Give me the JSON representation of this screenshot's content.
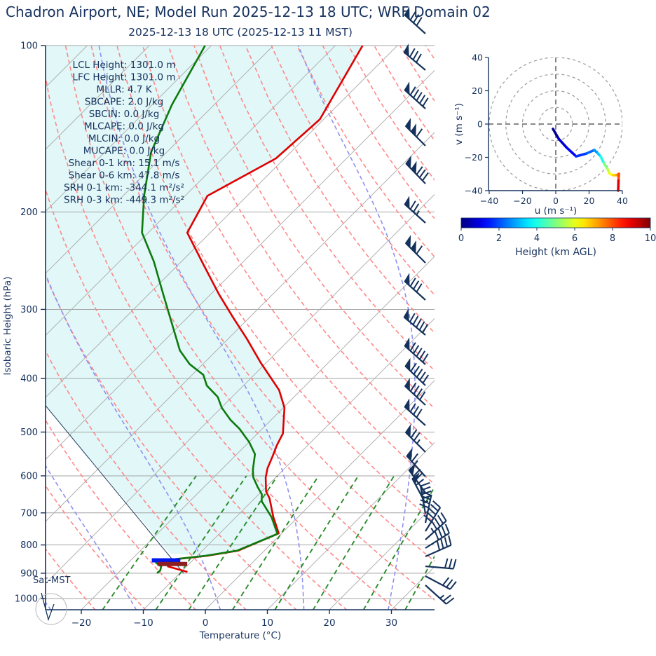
{
  "title": "Chadron Airport, NE; Model Run 2025-12-13 18 UTC; WRF Domain 02",
  "subtitle": "2025-12-13 18 UTC  (2025-12-13 11 MST)",
  "colors": {
    "text_navy": "#16325e",
    "temperature_line": "#e00000",
    "dewpoint_line": "#0d7a0d",
    "parcel_line": "#1a3a5c",
    "isotherm_gray": "#b3b3b3",
    "isobar_gray": "#a3a3a3",
    "dry_adiabat": "#ff8888",
    "moist_adiabat": "#9090ee",
    "mixing_ratio": "#2a8c2a",
    "shade_cyan": "#e1f7f8",
    "lcl_bar_blue": "#0018ee",
    "lfc_bar_darkred": "#8b2020",
    "barb_navy": "#14325c",
    "hodo_grid": "#999999"
  },
  "skewt": {
    "ylabel": "Isobaric Height (hPa)",
    "xlabel": "Temperature (°C)",
    "pressure_ticks": [
      100,
      200,
      300,
      400,
      500,
      600,
      700,
      800,
      900,
      1000
    ],
    "temp_ticks": [
      -20,
      -10,
      0,
      10,
      20,
      30
    ],
    "sat_label": "Sat-MST",
    "stats_lines": [
      "LCL Height: 1301.0 m",
      "LFC Height: 1301.0 m",
      "MLLR: 4.7 K",
      "SBCAPE: 2.0 J/kg",
      "SBCIN: 0.0 J/kg",
      "MLCAPE: 0.0 J/kg",
      "MLCIN: 0.0 J/kg",
      "MUCAPE: 0.0 J/kg",
      "Shear 0-1 km: 15.1 m/s",
      "Shear 0-6 km: 47.8 m/s",
      "SRH 0-1 km: -344.1 m²/s²",
      "SRH 0-3 km: -449.3 m²/s²"
    ]
  },
  "hodograph": {
    "xlabel": "u (m s⁻¹)",
    "ylabel": "v (m s⁻¹)",
    "axis_ticks": [
      -40,
      -20,
      0,
      20,
      40
    ],
    "ring_radii": [
      10,
      20,
      30,
      40
    ],
    "colorbar_label": "Height (km AGL)",
    "colorbar_ticks": [
      0,
      2,
      4,
      6,
      8,
      10
    ]
  },
  "chart_data": {
    "type": "line",
    "title": "Skew-T log-P sounding with hodograph inset",
    "xlabel": "Temperature (°C)",
    "ylabel": "Isobaric Height (hPa)",
    "x_range_c": [
      -26,
      37
    ],
    "p_range_hpa": [
      100,
      1050
    ],
    "skew_deg": 45,
    "grid": "on",
    "series": [
      {
        "name": "temperature",
        "units": [
          "hPa",
          "degC"
        ],
        "points": [
          [
            100,
            -65.6
          ],
          [
            136,
            -60.6
          ],
          [
            160,
            -61.4
          ],
          [
            187,
            -66.4
          ],
          [
            218,
            -63.7
          ],
          [
            250,
            -55.7
          ],
          [
            282,
            -48.6
          ],
          [
            310,
            -42.7
          ],
          [
            339,
            -37.0
          ],
          [
            374,
            -31.0
          ],
          [
            420,
            -23.5
          ],
          [
            452,
            -19.8
          ],
          [
            503,
            -15.9
          ],
          [
            528,
            -15.0
          ],
          [
            553,
            -13.9
          ],
          [
            581,
            -12.8
          ],
          [
            604,
            -11.6
          ],
          [
            640,
            -9.3
          ],
          [
            659,
            -7.6
          ],
          [
            712,
            -4.0
          ],
          [
            762,
            -0.5
          ],
          [
            819,
            -4.2
          ],
          [
            837,
            -8.4
          ],
          [
            849,
            -12.9
          ],
          [
            858,
            -14.1
          ],
          [
            875,
            -13.0
          ],
          [
            886,
            -10.8
          ],
          [
            895,
            -9.0
          ]
        ]
      },
      {
        "name": "dewpoint",
        "units": [
          "hPa",
          "degC"
        ],
        "points": [
          [
            100,
            -91.0
          ],
          [
            128,
            -86.8
          ],
          [
            156,
            -82.5
          ],
          [
            187,
            -76.6
          ],
          [
            218,
            -71.0
          ],
          [
            246,
            -64.4
          ],
          [
            282,
            -57.6
          ],
          [
            356,
            -45.9
          ],
          [
            377,
            -42.1
          ],
          [
            394,
            -38.2
          ],
          [
            412,
            -35.9
          ],
          [
            432,
            -32.3
          ],
          [
            452,
            -29.9
          ],
          [
            475,
            -26.6
          ],
          [
            493,
            -23.7
          ],
          [
            521,
            -20.0
          ],
          [
            548,
            -17.1
          ],
          [
            585,
            -14.9
          ],
          [
            604,
            -13.6
          ],
          [
            628,
            -11.4
          ],
          [
            648,
            -9.5
          ],
          [
            667,
            -8.4
          ],
          [
            712,
            -4.3
          ],
          [
            764,
            -0.6
          ],
          [
            819,
            -4.4
          ],
          [
            837,
            -8.7
          ],
          [
            849,
            -13.2
          ],
          [
            856,
            -15.1
          ],
          [
            862,
            -15.5
          ],
          [
            875,
            -14.1
          ],
          [
            890,
            -13.6
          ],
          [
            897,
            -13.7
          ],
          [
            901,
            -13.6
          ]
        ]
      },
      {
        "name": "parcel_path",
        "units": [
          "hPa",
          "degC"
        ],
        "points": [
          [
            449,
            -58.5
          ],
          [
            901,
            -9.3
          ]
        ]
      }
    ],
    "level_markers": [
      {
        "name": "lcl_bar",
        "color_key": "lcl_bar_blue",
        "p": 853,
        "t_from": -16.6,
        "t_to": -12.0
      },
      {
        "name": "lfc_bar",
        "color_key": "lfc_bar_darkred",
        "p": 866,
        "t_from": -15.1,
        "t_to": -10.3
      }
    ],
    "background_families": {
      "isotherms_c": {
        "from": -110,
        "to": 40,
        "step": 10
      },
      "dry_adiabats_theta_k": {
        "from": 244,
        "to": 436,
        "step": 8
      },
      "moist_adiabats_t0_c": [
        -42,
        -28,
        -14,
        0,
        14,
        28,
        42
      ],
      "mixing_ratio_g_kg": [
        1,
        2,
        3,
        5,
        8,
        12,
        20,
        30
      ],
      "mixing_ratio_top_hpa": 600
    },
    "wind_barbs": [
      {
        "y": 48,
        "dir": 312,
        "pennants": 1,
        "fulls": 3,
        "halves": 0
      },
      {
        "y": 100,
        "dir": 310,
        "pennants": 1,
        "fulls": 3,
        "halves": 0
      },
      {
        "y": 155,
        "dir": 312,
        "pennants": 1,
        "fulls": 5,
        "halves": 0
      },
      {
        "y": 208,
        "dir": 315,
        "pennants": 2,
        "fulls": 1,
        "halves": 0
      },
      {
        "y": 262,
        "dir": 316,
        "pennants": 2,
        "fulls": 3,
        "halves": 0
      },
      {
        "y": 318,
        "dir": 312,
        "pennants": 1,
        "fulls": 2,
        "halves": 1
      },
      {
        "y": 375,
        "dir": 315,
        "pennants": 2,
        "fulls": 1,
        "halves": 0
      },
      {
        "y": 428,
        "dir": 312,
        "pennants": 1,
        "fulls": 3,
        "halves": 0
      },
      {
        "y": 478,
        "dir": 310,
        "pennants": 1,
        "fulls": 5,
        "halves": 0
      },
      {
        "y": 520,
        "dir": 312,
        "pennants": 1,
        "fulls": 5,
        "halves": 0
      },
      {
        "y": 550,
        "dir": 314,
        "pennants": 1,
        "fulls": 5,
        "halves": 0
      },
      {
        "y": 578,
        "dir": 313,
        "pennants": 1,
        "fulls": 4,
        "halves": 0
      },
      {
        "y": 607,
        "dir": 312,
        "pennants": 1,
        "fulls": 3,
        "halves": 0
      },
      {
        "y": 645,
        "dir": 315,
        "pennants": 1,
        "fulls": 2,
        "halves": 1
      },
      {
        "y": 680,
        "dir": 318,
        "pennants": 1,
        "fulls": 1,
        "halves": 1
      },
      {
        "y": 703,
        "dir": 324,
        "pennants": 1,
        "fulls": 2,
        "halves": 0
      },
      {
        "y": 718,
        "dir": 332,
        "pennants": 1,
        "fulls": 1,
        "halves": 0
      },
      {
        "y": 733,
        "dir": 350,
        "pennants": 0,
        "fulls": 4,
        "halves": 1
      },
      {
        "y": 746,
        "dir": 12,
        "pennants": 0,
        "fulls": 4,
        "halves": 0
      },
      {
        "y": 758,
        "dir": 32,
        "pennants": 0,
        "fulls": 5,
        "halves": 0
      },
      {
        "y": 770,
        "dir": 48,
        "pennants": 0,
        "fulls": 4,
        "halves": 1
      },
      {
        "y": 782,
        "dir": 58,
        "pennants": 0,
        "fulls": 4,
        "halves": 0
      },
      {
        "y": 794,
        "dir": 66,
        "pennants": 0,
        "fulls": 4,
        "halves": 0
      },
      {
        "y": 808,
        "dir": 95,
        "pennants": 0,
        "fulls": 3,
        "halves": 0
      },
      {
        "y": 822,
        "dir": 118,
        "pennants": 0,
        "fulls": 3,
        "halves": 0
      },
      {
        "y": 835,
        "dir": 132,
        "pennants": 0,
        "fulls": 2,
        "halves": 1
      }
    ],
    "hodograph_trace": {
      "u_ms": [
        -1.7,
        1.7,
        6.3,
        12.2,
        18.5,
        23.2,
        25.3,
        26.9,
        29.0,
        31.2,
        32.4,
        34.5,
        36.6,
        37.9,
        37.7,
        37.5
      ],
      "v_ms": [
        -2.9,
        -8.8,
        -13.9,
        -19.4,
        -17.7,
        -15.6,
        -17.7,
        -19.4,
        -23.6,
        -27.2,
        -29.9,
        -30.7,
        -30.7,
        -29.9,
        -34.0,
        -40.0
      ],
      "height_km": [
        0,
        0.5,
        1,
        1.5,
        2,
        2.5,
        3,
        3.5,
        4.5,
        5.5,
        6,
        6.5,
        7,
        7.5,
        8.5,
        9.5
      ],
      "height_range_km": [
        0,
        10
      ]
    }
  }
}
